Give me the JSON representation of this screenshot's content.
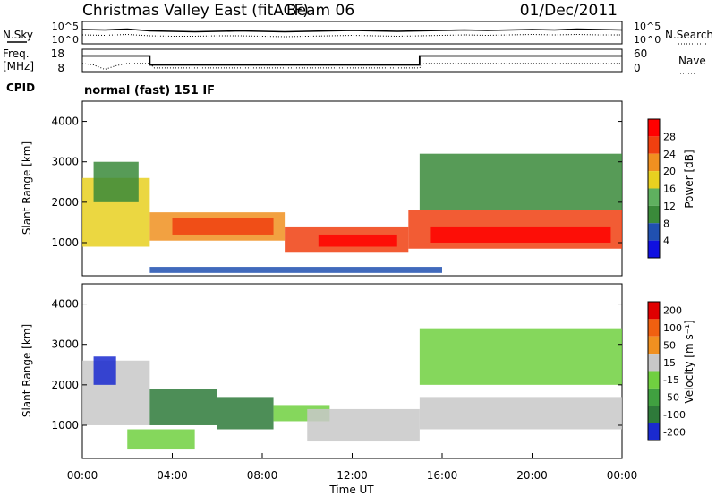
{
  "header": {
    "title": "Christmas Valley East (fitACF)",
    "beam": "Beam 06",
    "date": "01/Dec/2011"
  },
  "chart_data": [
    {
      "type": "line",
      "name": "noise-panel",
      "left_label": "N.Sky",
      "right_label": "N.Search",
      "left_ticks": [
        "10^5",
        "10^0"
      ],
      "right_ticks": [
        "10^5",
        "10^0"
      ],
      "x_hours": [
        0,
        1,
        2,
        3,
        4,
        5,
        6,
        7,
        8,
        9,
        10,
        11,
        12,
        13,
        14,
        15,
        16,
        17,
        18,
        19,
        20,
        21,
        22,
        23,
        24
      ],
      "n_sky_log": [
        3.2,
        3.1,
        3.3,
        2.9,
        2.8,
        2.7,
        2.8,
        2.9,
        2.8,
        2.7,
        2.8,
        2.9,
        3.0,
        2.9,
        2.8,
        2.9,
        3.0,
        3.1,
        3.0,
        3.1,
        3.2,
        3.1,
        3.3,
        3.2,
        3.1
      ],
      "n_search_log": [
        2.0,
        1.9,
        2.1,
        1.8,
        1.7,
        1.7,
        1.8,
        1.8,
        1.7,
        1.6,
        1.7,
        1.8,
        1.9,
        1.8,
        1.7,
        1.8,
        1.9,
        2.0,
        1.9,
        2.0,
        2.1,
        2.0,
        2.1,
        2.0,
        2.0
      ]
    },
    {
      "type": "line",
      "name": "frequency-panel",
      "left_label_1": "Freq.",
      "left_label_2": "[MHz]",
      "right_label": "Nave",
      "left_ticks": [
        "18",
        "8"
      ],
      "right_ticks": [
        "60",
        "0"
      ],
      "freq_steps": [
        {
          "from": 0,
          "to": 3,
          "value": 15
        },
        {
          "from": 3,
          "to": 15,
          "value": 11
        },
        {
          "from": 15,
          "to": 24,
          "value": 15
        }
      ],
      "nave": [
        {
          "x": 0,
          "y": 22
        },
        {
          "x": 0.5,
          "y": 18
        },
        {
          "x": 1.0,
          "y": 6
        },
        {
          "x": 1.5,
          "y": 16
        },
        {
          "x": 2.0,
          "y": 22
        },
        {
          "x": 3,
          "y": 22
        },
        {
          "x": 3.2,
          "y": 10
        },
        {
          "x": 15,
          "y": 10
        },
        {
          "x": 15.2,
          "y": 22
        },
        {
          "x": 24,
          "y": 22
        }
      ]
    },
    {
      "type": "heatmap",
      "name": "power-panel",
      "cpid_label": "CPID",
      "mode_label": "normal (fast) 151 IF",
      "ylabel": "Slant Range [km]",
      "yticks": [
        "1000",
        "2000",
        "3000",
        "4000"
      ],
      "ylim": [
        180,
        4500
      ],
      "colorbar_label": "Power [dB]",
      "colorbar_ticks": [
        "4",
        "8",
        "12",
        "16",
        "20",
        "24",
        "28"
      ],
      "colors": [
        "#1010e0",
        "#2050b0",
        "#3a8a3a",
        "#5fb05f",
        "#e8d020",
        "#f09020",
        "#f04010",
        "#ff0000"
      ],
      "bands": [
        {
          "x0": 0,
          "x1": 3,
          "lo": 900,
          "hi": 2600,
          "level": 4
        },
        {
          "x0": 0.5,
          "x1": 2.5,
          "lo": 2000,
          "hi": 3000,
          "level": 2
        },
        {
          "x0": 3,
          "x1": 9,
          "lo": 1050,
          "hi": 1750,
          "level": 5
        },
        {
          "x0": 4,
          "x1": 8.5,
          "lo": 1200,
          "hi": 1600,
          "level": 6
        },
        {
          "x0": 9,
          "x1": 14.5,
          "lo": 750,
          "hi": 1400,
          "level": 6
        },
        {
          "x0": 10.5,
          "x1": 14,
          "lo": 900,
          "hi": 1200,
          "level": 7
        },
        {
          "x0": 14.5,
          "x1": 24,
          "lo": 850,
          "hi": 1800,
          "level": 6
        },
        {
          "x0": 15.5,
          "x1": 23.5,
          "lo": 1000,
          "hi": 1400,
          "level": 7
        },
        {
          "x0": 15,
          "x1": 24,
          "lo": 1800,
          "hi": 3200,
          "level": 2
        },
        {
          "x0": 3,
          "x1": 16,
          "lo": 250,
          "hi": 400,
          "level": 1
        }
      ]
    },
    {
      "type": "heatmap",
      "name": "velocity-panel",
      "xlabel": "Time UT",
      "xticks": [
        "00:00",
        "04:00",
        "08:00",
        "12:00",
        "16:00",
        "20:00",
        "00:00"
      ],
      "ylabel": "Slant Range [km]",
      "yticks": [
        "1000",
        "2000",
        "3000",
        "4000"
      ],
      "ylim": [
        180,
        4500
      ],
      "colorbar_label": "Velocity [m s⁻¹]",
      "colorbar_ticks": [
        "200",
        "100",
        "50",
        "15",
        "-15",
        "-50",
        "-100",
        "-200"
      ],
      "colors": [
        "#1a2ad0",
        "#2e7a3a",
        "#40a040",
        "#70d040",
        "#c8c8c8",
        "#f09020",
        "#f06010",
        "#e00000"
      ],
      "bands": [
        {
          "x0": 0,
          "x1": 3,
          "lo": 1000,
          "hi": 2600,
          "level": 4
        },
        {
          "x0": 3,
          "x1": 6,
          "lo": 1000,
          "hi": 1900,
          "level": 1
        },
        {
          "x0": 6,
          "x1": 8.5,
          "lo": 900,
          "hi": 1700,
          "level": 1
        },
        {
          "x0": 8.5,
          "x1": 11,
          "lo": 1100,
          "hi": 1500,
          "level": 3
        },
        {
          "x0": 10,
          "x1": 15,
          "lo": 600,
          "hi": 1400,
          "level": 4
        },
        {
          "x0": 15,
          "x1": 24,
          "lo": 900,
          "hi": 1700,
          "level": 4
        },
        {
          "x0": 2,
          "x1": 5,
          "lo": 400,
          "hi": 900,
          "level": 3
        },
        {
          "x0": 0.5,
          "x1": 1.5,
          "lo": 2000,
          "hi": 2700,
          "level": 0
        },
        {
          "x0": 15,
          "x1": 24,
          "lo": 2000,
          "hi": 3400,
          "level": 3
        }
      ]
    }
  ]
}
